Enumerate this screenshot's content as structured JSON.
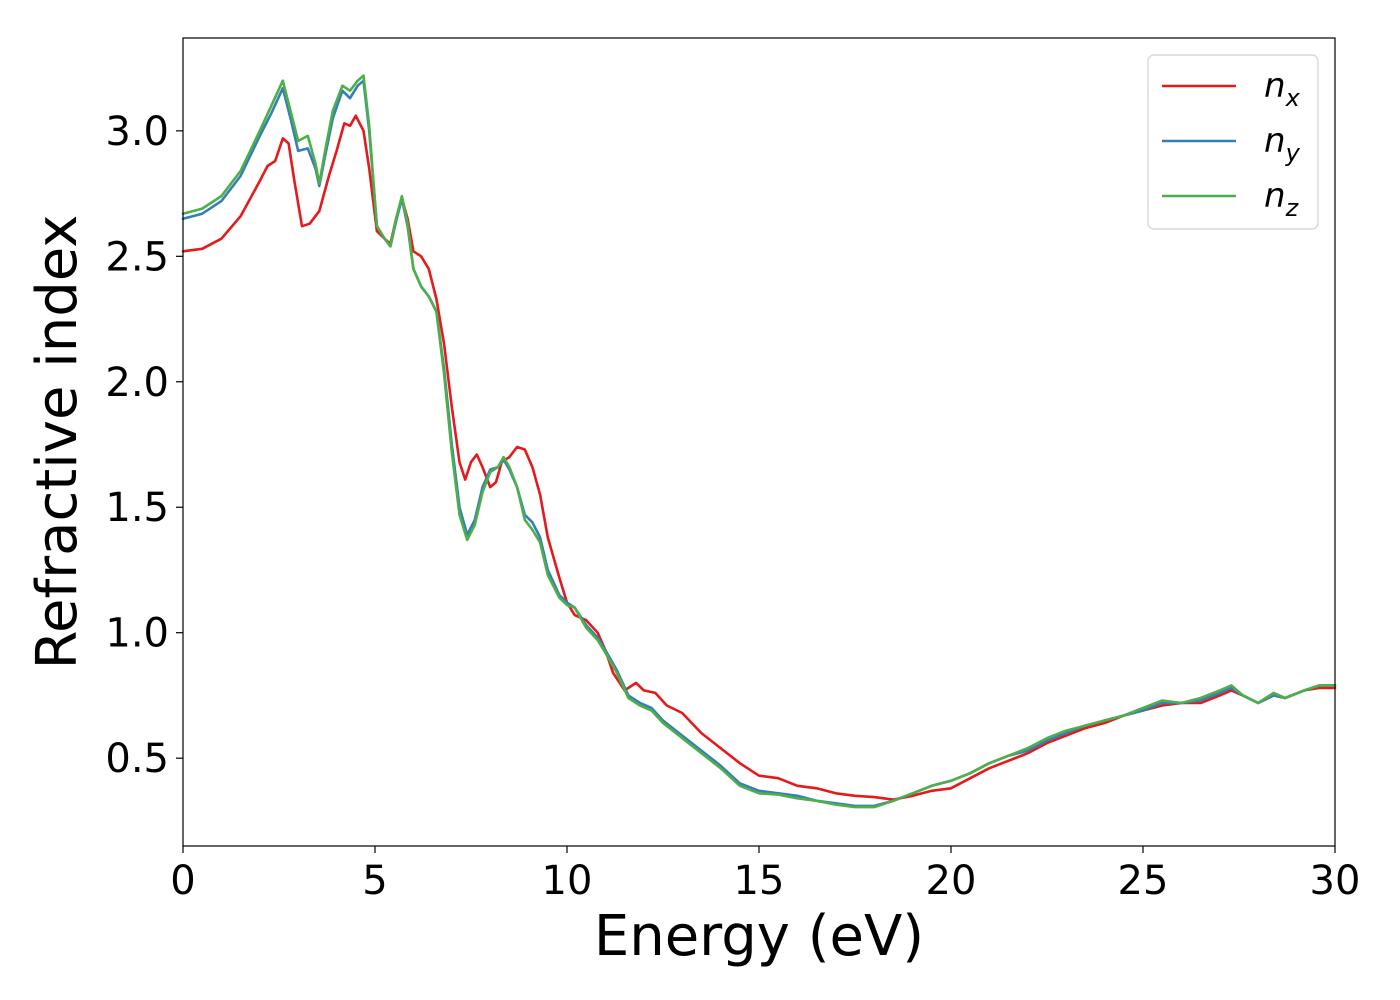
{
  "chart_data": {
    "type": "line",
    "title": "",
    "xlabel": "Energy (eV)",
    "ylabel": "Refractive index",
    "xlim": [
      0,
      30
    ],
    "ylim": [
      0.15,
      3.37
    ],
    "xticks": [
      0,
      5,
      10,
      15,
      20,
      25,
      30
    ],
    "xtick_labels": [
      "0",
      "5",
      "10",
      "15",
      "20",
      "25",
      "30"
    ],
    "yticks": [
      0.5,
      1.0,
      1.5,
      2.0,
      2.5,
      3.0
    ],
    "ytick_labels": [
      "0.5",
      "1.0",
      "1.5",
      "2.0",
      "2.5",
      "3.0"
    ],
    "grid": false,
    "legend_position": "top-right",
    "series": [
      {
        "name": "n_x",
        "label_base": "n",
        "label_sub": "x",
        "color": "#e41a1c",
        "points": [
          [
            0,
            2.52
          ],
          [
            0.5,
            2.53
          ],
          [
            1,
            2.57
          ],
          [
            1.5,
            2.66
          ],
          [
            2,
            2.8
          ],
          [
            2.2,
            2.86
          ],
          [
            2.4,
            2.88
          ],
          [
            2.6,
            2.97
          ],
          [
            2.75,
            2.95
          ],
          [
            2.9,
            2.8
          ],
          [
            3.1,
            2.62
          ],
          [
            3.3,
            2.63
          ],
          [
            3.55,
            2.68
          ],
          [
            3.8,
            2.82
          ],
          [
            4.0,
            2.92
          ],
          [
            4.2,
            3.03
          ],
          [
            4.35,
            3.02
          ],
          [
            4.5,
            3.06
          ],
          [
            4.7,
            3.0
          ],
          [
            4.85,
            2.85
          ],
          [
            5.05,
            2.6
          ],
          [
            5.25,
            2.57
          ],
          [
            5.4,
            2.55
          ],
          [
            5.55,
            2.65
          ],
          [
            5.7,
            2.73
          ],
          [
            5.85,
            2.65
          ],
          [
            6.0,
            2.52
          ],
          [
            6.2,
            2.5
          ],
          [
            6.4,
            2.45
          ],
          [
            6.6,
            2.33
          ],
          [
            6.8,
            2.15
          ],
          [
            7.0,
            1.9
          ],
          [
            7.2,
            1.68
          ],
          [
            7.35,
            1.61
          ],
          [
            7.5,
            1.68
          ],
          [
            7.65,
            1.71
          ],
          [
            7.8,
            1.66
          ],
          [
            8.0,
            1.58
          ],
          [
            8.15,
            1.6
          ],
          [
            8.3,
            1.68
          ],
          [
            8.5,
            1.7
          ],
          [
            8.7,
            1.74
          ],
          [
            8.9,
            1.73
          ],
          [
            9.1,
            1.66
          ],
          [
            9.3,
            1.55
          ],
          [
            9.5,
            1.38
          ],
          [
            9.8,
            1.22
          ],
          [
            10.0,
            1.12
          ],
          [
            10.2,
            1.07
          ],
          [
            10.5,
            1.05
          ],
          [
            10.8,
            1.0
          ],
          [
            11.0,
            0.93
          ],
          [
            11.2,
            0.84
          ],
          [
            11.5,
            0.77
          ],
          [
            11.8,
            0.8
          ],
          [
            12.0,
            0.77
          ],
          [
            12.3,
            0.76
          ],
          [
            12.6,
            0.71
          ],
          [
            13.0,
            0.68
          ],
          [
            13.5,
            0.6
          ],
          [
            14.0,
            0.54
          ],
          [
            14.5,
            0.48
          ],
          [
            15.0,
            0.43
          ],
          [
            15.5,
            0.42
          ],
          [
            16.0,
            0.39
          ],
          [
            16.5,
            0.38
          ],
          [
            17.0,
            0.36
          ],
          [
            17.5,
            0.35
          ],
          [
            18.0,
            0.345
          ],
          [
            18.5,
            0.335
          ],
          [
            19.0,
            0.35
          ],
          [
            19.5,
            0.37
          ],
          [
            20.0,
            0.38
          ],
          [
            20.5,
            0.42
          ],
          [
            21.0,
            0.46
          ],
          [
            21.5,
            0.49
          ],
          [
            22.0,
            0.52
          ],
          [
            22.5,
            0.56
          ],
          [
            23.0,
            0.59
          ],
          [
            23.5,
            0.62
          ],
          [
            24.0,
            0.64
          ],
          [
            24.5,
            0.67
          ],
          [
            25.0,
            0.69
          ],
          [
            25.5,
            0.71
          ],
          [
            26.0,
            0.72
          ],
          [
            26.5,
            0.72
          ],
          [
            27.0,
            0.75
          ],
          [
            27.3,
            0.77
          ],
          [
            27.6,
            0.75
          ],
          [
            28.0,
            0.72
          ],
          [
            28.4,
            0.75
          ],
          [
            28.7,
            0.74
          ],
          [
            29.2,
            0.77
          ],
          [
            29.6,
            0.78
          ],
          [
            30.0,
            0.78
          ]
        ]
      },
      {
        "name": "n_y",
        "label_base": "n",
        "label_sub": "y",
        "color": "#377eb8",
        "points": [
          [
            0,
            2.65
          ],
          [
            0.5,
            2.67
          ],
          [
            1,
            2.72
          ],
          [
            1.5,
            2.82
          ],
          [
            2,
            2.98
          ],
          [
            2.3,
            3.07
          ],
          [
            2.6,
            3.17
          ],
          [
            2.8,
            3.05
          ],
          [
            3.0,
            2.92
          ],
          [
            3.25,
            2.93
          ],
          [
            3.45,
            2.85
          ],
          [
            3.55,
            2.78
          ],
          [
            3.7,
            2.9
          ],
          [
            3.9,
            3.05
          ],
          [
            4.15,
            3.16
          ],
          [
            4.35,
            3.13
          ],
          [
            4.55,
            3.18
          ],
          [
            4.7,
            3.2
          ],
          [
            4.85,
            3.0
          ],
          [
            5.05,
            2.62
          ],
          [
            5.25,
            2.57
          ],
          [
            5.4,
            2.54
          ],
          [
            5.55,
            2.64
          ],
          [
            5.7,
            2.73
          ],
          [
            5.85,
            2.62
          ],
          [
            6.0,
            2.45
          ],
          [
            6.2,
            2.38
          ],
          [
            6.4,
            2.34
          ],
          [
            6.6,
            2.28
          ],
          [
            6.8,
            2.05
          ],
          [
            7.0,
            1.75
          ],
          [
            7.2,
            1.5
          ],
          [
            7.4,
            1.39
          ],
          [
            7.6,
            1.45
          ],
          [
            7.8,
            1.58
          ],
          [
            8.0,
            1.65
          ],
          [
            8.2,
            1.66
          ],
          [
            8.35,
            1.69
          ],
          [
            8.5,
            1.65
          ],
          [
            8.7,
            1.58
          ],
          [
            8.9,
            1.47
          ],
          [
            9.1,
            1.44
          ],
          [
            9.3,
            1.38
          ],
          [
            9.5,
            1.25
          ],
          [
            9.8,
            1.15
          ],
          [
            10.0,
            1.12
          ],
          [
            10.2,
            1.1
          ],
          [
            10.5,
            1.03
          ],
          [
            10.8,
            0.98
          ],
          [
            11.0,
            0.93
          ],
          [
            11.3,
            0.85
          ],
          [
            11.6,
            0.75
          ],
          [
            11.9,
            0.72
          ],
          [
            12.2,
            0.7
          ],
          [
            12.5,
            0.65
          ],
          [
            13.0,
            0.59
          ],
          [
            13.5,
            0.53
          ],
          [
            14.0,
            0.47
          ],
          [
            14.5,
            0.4
          ],
          [
            15.0,
            0.37
          ],
          [
            15.5,
            0.36
          ],
          [
            16.0,
            0.35
          ],
          [
            16.5,
            0.33
          ],
          [
            17.0,
            0.32
          ],
          [
            17.5,
            0.31
          ],
          [
            18.0,
            0.31
          ],
          [
            18.5,
            0.33
          ],
          [
            19.0,
            0.36
          ],
          [
            19.5,
            0.39
          ],
          [
            20.0,
            0.41
          ],
          [
            20.5,
            0.44
          ],
          [
            21.0,
            0.48
          ],
          [
            21.5,
            0.51
          ],
          [
            22.0,
            0.53
          ],
          [
            22.5,
            0.57
          ],
          [
            23.0,
            0.6
          ],
          [
            23.5,
            0.63
          ],
          [
            24.0,
            0.65
          ],
          [
            24.5,
            0.67
          ],
          [
            25.0,
            0.69
          ],
          [
            25.5,
            0.72
          ],
          [
            26.0,
            0.72
          ],
          [
            26.5,
            0.73
          ],
          [
            27.0,
            0.76
          ],
          [
            27.3,
            0.78
          ],
          [
            27.6,
            0.75
          ],
          [
            28.0,
            0.72
          ],
          [
            28.4,
            0.75
          ],
          [
            28.7,
            0.74
          ],
          [
            29.2,
            0.77
          ],
          [
            29.6,
            0.79
          ],
          [
            30.0,
            0.79
          ]
        ]
      },
      {
        "name": "n_z",
        "label_base": "n",
        "label_sub": "z",
        "color": "#4daf4a",
        "points": [
          [
            0,
            2.67
          ],
          [
            0.5,
            2.69
          ],
          [
            1,
            2.74
          ],
          [
            1.5,
            2.84
          ],
          [
            2,
            3.0
          ],
          [
            2.3,
            3.1
          ],
          [
            2.6,
            3.2
          ],
          [
            2.8,
            3.08
          ],
          [
            3.0,
            2.96
          ],
          [
            3.25,
            2.98
          ],
          [
            3.45,
            2.87
          ],
          [
            3.55,
            2.79
          ],
          [
            3.7,
            2.92
          ],
          [
            3.9,
            3.08
          ],
          [
            4.15,
            3.18
          ],
          [
            4.35,
            3.16
          ],
          [
            4.55,
            3.2
          ],
          [
            4.7,
            3.22
          ],
          [
            4.85,
            3.02
          ],
          [
            5.05,
            2.62
          ],
          [
            5.25,
            2.57
          ],
          [
            5.4,
            2.54
          ],
          [
            5.55,
            2.65
          ],
          [
            5.7,
            2.74
          ],
          [
            5.85,
            2.63
          ],
          [
            6.0,
            2.45
          ],
          [
            6.2,
            2.38
          ],
          [
            6.4,
            2.34
          ],
          [
            6.6,
            2.28
          ],
          [
            6.8,
            2.03
          ],
          [
            7.0,
            1.72
          ],
          [
            7.2,
            1.47
          ],
          [
            7.4,
            1.37
          ],
          [
            7.6,
            1.43
          ],
          [
            7.8,
            1.56
          ],
          [
            8.0,
            1.64
          ],
          [
            8.2,
            1.66
          ],
          [
            8.35,
            1.7
          ],
          [
            8.5,
            1.66
          ],
          [
            8.7,
            1.58
          ],
          [
            8.9,
            1.45
          ],
          [
            9.1,
            1.41
          ],
          [
            9.3,
            1.36
          ],
          [
            9.5,
            1.23
          ],
          [
            9.8,
            1.14
          ],
          [
            10.0,
            1.11
          ],
          [
            10.2,
            1.1
          ],
          [
            10.5,
            1.02
          ],
          [
            10.8,
            0.97
          ],
          [
            11.0,
            0.92
          ],
          [
            11.3,
            0.84
          ],
          [
            11.6,
            0.74
          ],
          [
            11.9,
            0.71
          ],
          [
            12.2,
            0.69
          ],
          [
            12.5,
            0.64
          ],
          [
            13.0,
            0.58
          ],
          [
            13.5,
            0.52
          ],
          [
            14.0,
            0.46
          ],
          [
            14.5,
            0.39
          ],
          [
            15.0,
            0.36
          ],
          [
            15.5,
            0.355
          ],
          [
            16.0,
            0.34
          ],
          [
            16.5,
            0.33
          ],
          [
            17.0,
            0.315
          ],
          [
            17.5,
            0.305
          ],
          [
            18.0,
            0.305
          ],
          [
            18.5,
            0.33
          ],
          [
            19.0,
            0.36
          ],
          [
            19.5,
            0.39
          ],
          [
            20.0,
            0.41
          ],
          [
            20.5,
            0.44
          ],
          [
            21.0,
            0.48
          ],
          [
            21.5,
            0.51
          ],
          [
            22.0,
            0.54
          ],
          [
            22.5,
            0.58
          ],
          [
            23.0,
            0.61
          ],
          [
            23.5,
            0.63
          ],
          [
            24.0,
            0.65
          ],
          [
            24.5,
            0.67
          ],
          [
            25.0,
            0.7
          ],
          [
            25.5,
            0.73
          ],
          [
            26.0,
            0.72
          ],
          [
            26.5,
            0.74
          ],
          [
            27.0,
            0.77
          ],
          [
            27.3,
            0.79
          ],
          [
            27.6,
            0.75
          ],
          [
            28.0,
            0.72
          ],
          [
            28.4,
            0.76
          ],
          [
            28.7,
            0.74
          ],
          [
            29.2,
            0.77
          ],
          [
            29.6,
            0.79
          ],
          [
            30.0,
            0.79
          ]
        ]
      }
    ]
  }
}
